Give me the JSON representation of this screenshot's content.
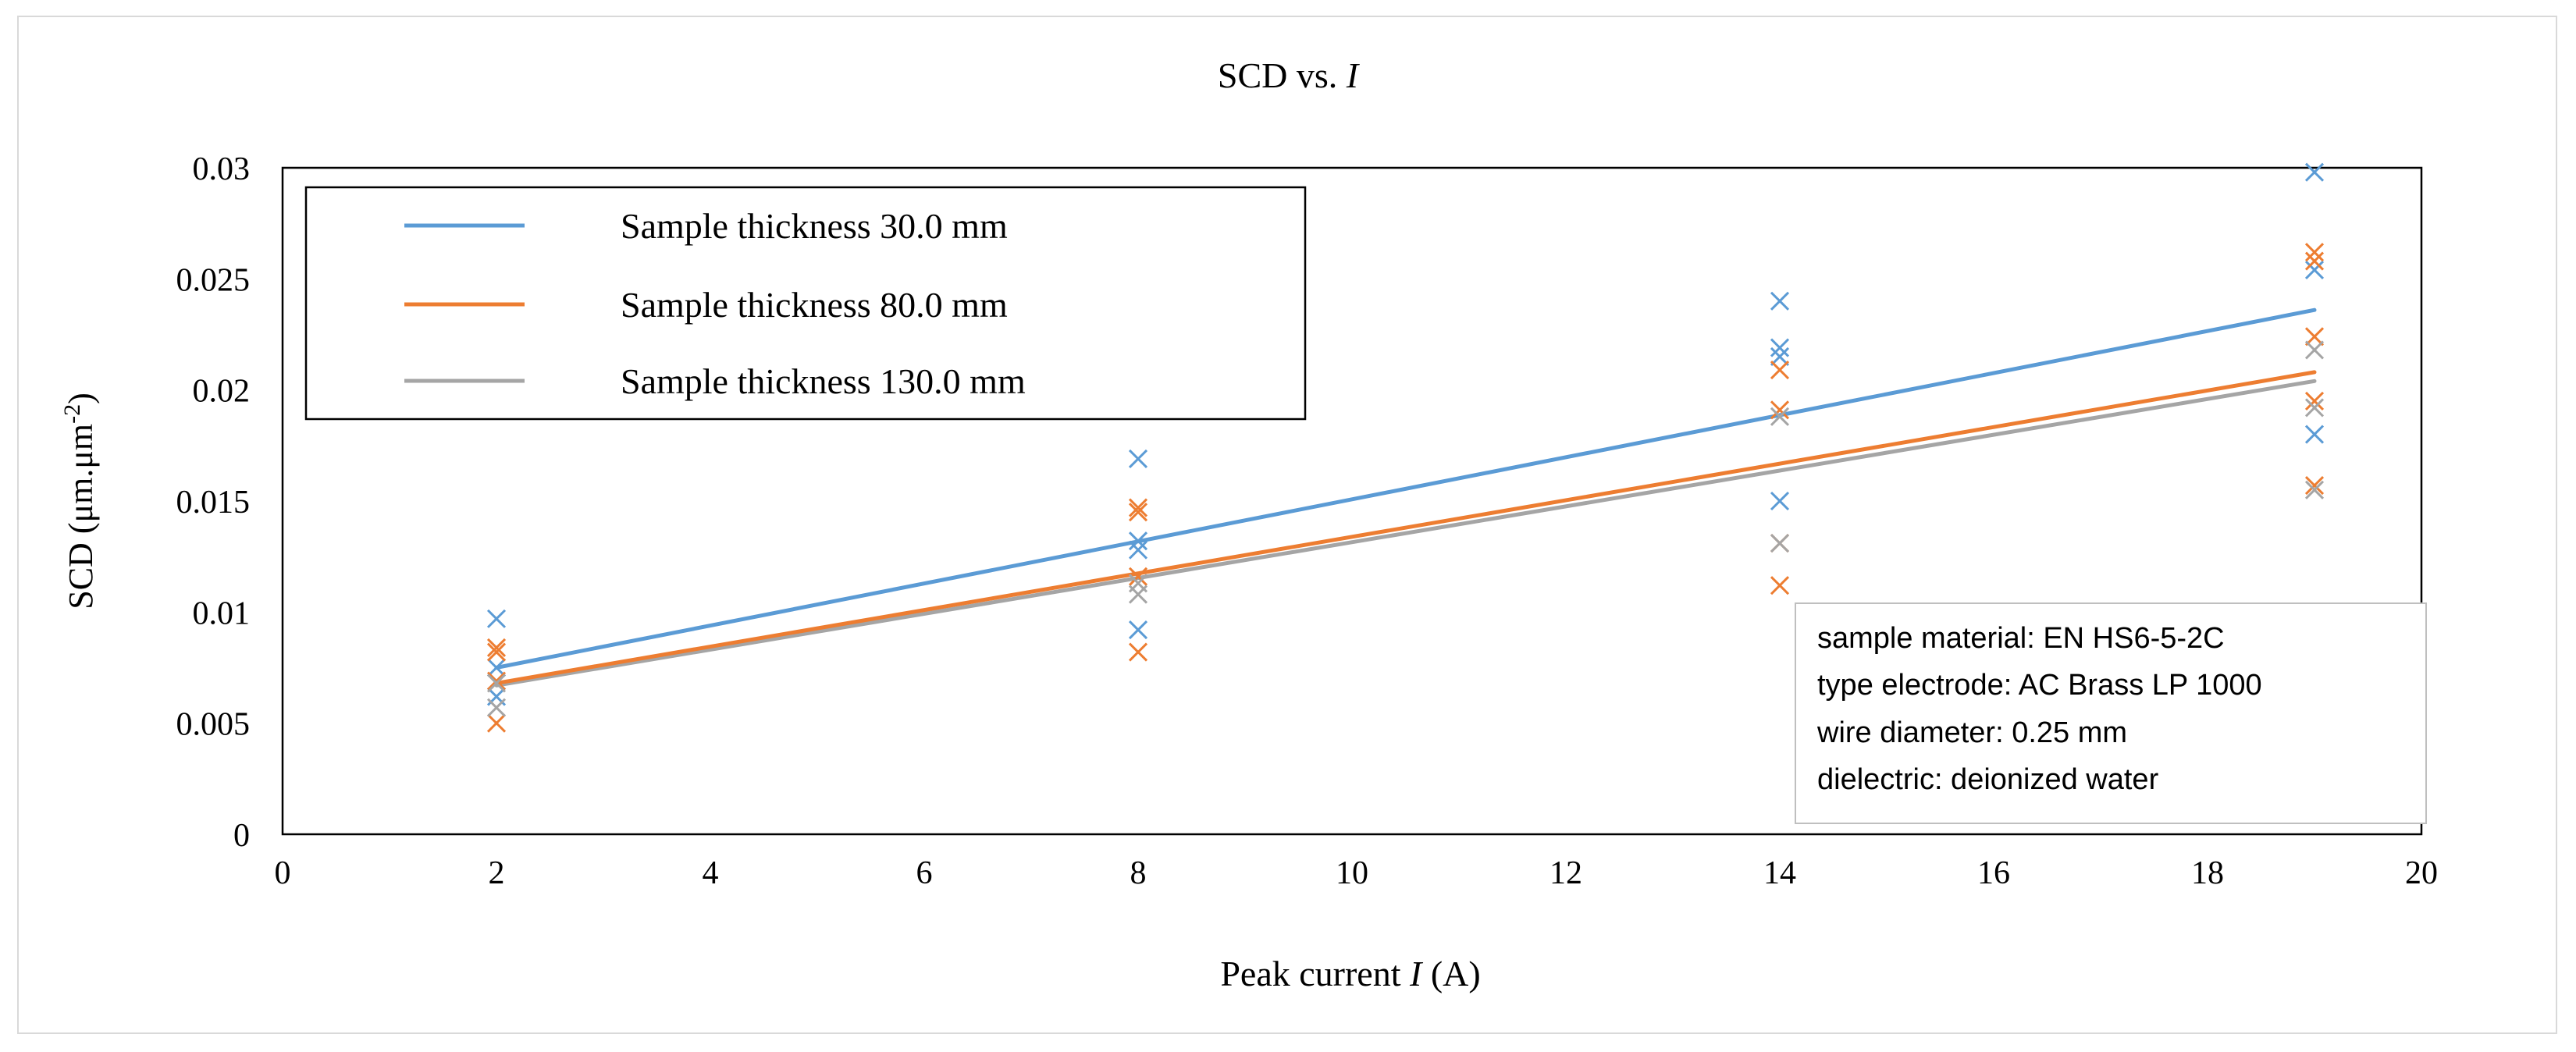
{
  "chart_data": {
    "type": "scatter",
    "title": "SCD vs. ",
    "title_italic": "I",
    "xlabel": "Peak current ",
    "xlabel_italic": "I",
    "xlabel_unit": " (A)",
    "ylabel": "SCD (μm.μm",
    "ylabel_sup": "-2",
    "ylabel_close": ")",
    "xlim": [
      0,
      20
    ],
    "ylim": [
      0,
      0.03
    ],
    "x_ticks": [
      "0",
      "2",
      "4",
      "6",
      "8",
      "10",
      "12",
      "14",
      "16",
      "18",
      "20"
    ],
    "y_ticks": [
      "0",
      "0.005",
      "0.01",
      "0.015",
      "0.02",
      "0.025",
      "0.03"
    ],
    "grid": false,
    "legend_position": "top-left",
    "series": [
      {
        "name": "Sample thickness 30.0 mm",
        "color": "#5b9bd5",
        "points": [
          [
            2,
            0.0097
          ],
          [
            2,
            0.0075
          ],
          [
            2,
            0.0062
          ],
          [
            8,
            0.0169
          ],
          [
            8,
            0.0132
          ],
          [
            8,
            0.0128
          ],
          [
            8,
            0.0092
          ],
          [
            14,
            0.024
          ],
          [
            14,
            0.0219
          ],
          [
            14,
            0.0215
          ],
          [
            14,
            0.015
          ],
          [
            19,
            0.0298
          ],
          [
            19,
            0.0254
          ],
          [
            19,
            0.018
          ]
        ],
        "trend": [
          [
            2,
            0.0075
          ],
          [
            19,
            0.0236
          ]
        ]
      },
      {
        "name": "Sample thickness 80.0 mm",
        "color": "#ed7d31",
        "points": [
          [
            2,
            0.0084
          ],
          [
            2,
            0.0082
          ],
          [
            2,
            0.0069
          ],
          [
            2,
            0.005
          ],
          [
            8,
            0.0147
          ],
          [
            8,
            0.0145
          ],
          [
            8,
            0.0116
          ],
          [
            8,
            0.0082
          ],
          [
            14,
            0.0209
          ],
          [
            14,
            0.0191
          ],
          [
            14,
            0.0131
          ],
          [
            14,
            0.0112
          ],
          [
            19,
            0.0262
          ],
          [
            19,
            0.0258
          ],
          [
            19,
            0.0224
          ],
          [
            19,
            0.0195
          ],
          [
            19,
            0.0157
          ]
        ],
        "trend": [
          [
            2,
            0.0068
          ],
          [
            19,
            0.0208
          ]
        ]
      },
      {
        "name": "Sample thickness 130.0 mm",
        "color": "#a5a5a5",
        "points": [
          [
            2,
            0.0068
          ],
          [
            2,
            0.0057
          ],
          [
            8,
            0.0113
          ],
          [
            8,
            0.0108
          ],
          [
            14,
            0.0188
          ],
          [
            14,
            0.0131
          ],
          [
            19,
            0.0218
          ],
          [
            19,
            0.0192
          ],
          [
            19,
            0.0155
          ]
        ],
        "trend": [
          [
            2,
            0.0067
          ],
          [
            19,
            0.0204
          ]
        ]
      }
    ],
    "annotation": [
      "sample material: EN HS6-5-2C",
      "type electrode: AC Brass LP 1000",
      "wire diameter: 0.25 mm",
      "dielectric: deionized water"
    ]
  }
}
